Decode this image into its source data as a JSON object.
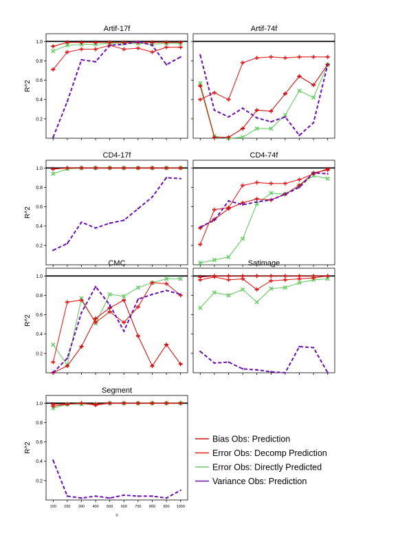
{
  "colors": {
    "bias": "#cc1111",
    "error_decomp": "#dd2222",
    "error_direct": "#66cc66",
    "variance": "#6a0dad",
    "reference": "#000000"
  },
  "legend": {
    "placement": "right-of-bottom-panel",
    "entries": [
      {
        "key": "bias",
        "label": "Bias Obs: Prediction"
      },
      {
        "key": "error_decomp",
        "label": "Error  Obs: Decomp Prediction"
      },
      {
        "key": "error_direct",
        "label": "Error  Obs: Directly Predicted"
      },
      {
        "key": "variance",
        "label": "Variance  Obs: Prediction"
      }
    ]
  },
  "chart_data": [
    {
      "type": "line",
      "title": "Artif-17f",
      "xlabel": "",
      "ylabel": "R^2",
      "show_ylabel": true,
      "show_xticks": false,
      "xlim": [
        50,
        1050
      ],
      "ylim": [
        0,
        1.08
      ],
      "x": [
        100,
        200,
        300,
        400,
        500,
        600,
        700,
        800,
        900,
        1000
      ],
      "yticks": [
        0.2,
        0.4,
        0.6,
        0.8,
        1.0
      ],
      "ytick_labels": [
        "0.2",
        "0.4",
        "0.6",
        "0.8",
        "1.0"
      ],
      "reference_line": 1.0,
      "series": [
        {
          "key": "bias",
          "values": [
            0.95,
            0.99,
            0.99,
            0.99,
            0.99,
            0.99,
            0.99,
            0.99,
            0.99,
            0.99
          ]
        },
        {
          "key": "error_decomp",
          "values": [
            0.71,
            0.89,
            0.92,
            0.92,
            0.96,
            0.92,
            0.93,
            0.89,
            0.94,
            0.94
          ]
        },
        {
          "key": "error_direct",
          "values": [
            0.9,
            0.96,
            0.97,
            0.97,
            0.98,
            0.98,
            0.98,
            0.97,
            0.98,
            0.98
          ]
        },
        {
          "key": "variance",
          "values": [
            0.01,
            0.38,
            0.81,
            0.79,
            0.96,
            0.97,
            1.0,
            0.96,
            0.76,
            0.84
          ]
        }
      ]
    },
    {
      "type": "line",
      "title": "Artif-74f",
      "xlabel": "",
      "ylabel": "",
      "show_ylabel": false,
      "show_xticks": false,
      "xlim": [
        50,
        1050
      ],
      "ylim": [
        0,
        1.08
      ],
      "x": [
        100,
        200,
        300,
        400,
        500,
        600,
        700,
        800,
        900,
        1000
      ],
      "yticks": [
        0.2,
        0.4,
        0.6,
        0.8,
        1.0
      ],
      "ytick_labels": [],
      "reference_line": 1.0,
      "series": [
        {
          "key": "bias",
          "values": [
            0.54,
            0.01,
            0.01,
            0.1,
            0.29,
            0.28,
            0.46,
            0.64,
            0.55,
            0.76
          ]
        },
        {
          "key": "error_decomp",
          "values": [
            0.4,
            0.47,
            0.4,
            0.78,
            0.83,
            0.84,
            0.83,
            0.84,
            0.84,
            0.84
          ]
        },
        {
          "key": "error_direct",
          "values": [
            0.57,
            0.02,
            0.0,
            0.01,
            0.1,
            0.1,
            0.24,
            0.49,
            0.42,
            0.76
          ]
        },
        {
          "key": "variance",
          "values": [
            0.86,
            0.29,
            0.22,
            0.31,
            0.21,
            0.17,
            0.22,
            0.03,
            0.16,
            0.76
          ]
        }
      ]
    },
    {
      "type": "line",
      "title": "CD4-17f",
      "xlabel": "",
      "ylabel": "R^2",
      "show_ylabel": true,
      "show_xticks": false,
      "xlim": [
        50,
        1050
      ],
      "ylim": [
        0,
        1.08
      ],
      "x": [
        100,
        200,
        300,
        400,
        500,
        600,
        700,
        800,
        900,
        1000
      ],
      "yticks": [
        0.2,
        0.4,
        0.6,
        0.8,
        1.0
      ],
      "ytick_labels": [
        "0.2",
        "0.4",
        "0.6",
        "0.8",
        "1.0"
      ],
      "reference_line": 1.0,
      "series": [
        {
          "key": "bias",
          "values": [
            0.99,
            1.0,
            1.0,
            1.0,
            1.0,
            1.0,
            1.0,
            1.0,
            1.0,
            1.0
          ]
        },
        {
          "key": "error_decomp",
          "values": [
            0.99,
            1.0,
            1.0,
            1.0,
            1.0,
            1.0,
            1.0,
            1.0,
            1.0,
            1.0
          ]
        },
        {
          "key": "error_direct",
          "values": [
            0.94,
            0.99,
            1.0,
            1.0,
            1.0,
            1.0,
            1.0,
            1.0,
            1.0,
            1.0
          ]
        },
        {
          "key": "variance",
          "values": [
            0.15,
            0.22,
            0.44,
            0.38,
            0.43,
            0.46,
            0.58,
            0.7,
            0.9,
            0.89
          ]
        }
      ]
    },
    {
      "type": "line",
      "title": "CD4-74f",
      "xlabel": "",
      "ylabel": "",
      "show_ylabel": false,
      "show_xticks": false,
      "xlim": [
        50,
        1050
      ],
      "ylim": [
        0,
        1.08
      ],
      "x": [
        100,
        200,
        300,
        400,
        500,
        600,
        700,
        800,
        900,
        1000
      ],
      "yticks": [
        0.2,
        0.4,
        0.6,
        0.8,
        1.0
      ],
      "ytick_labels": [],
      "reference_line": 1.0,
      "series": [
        {
          "key": "bias",
          "values": [
            0.38,
            0.47,
            0.58,
            0.64,
            0.68,
            0.67,
            0.73,
            0.82,
            0.95,
            0.98
          ]
        },
        {
          "key": "error_decomp",
          "values": [
            0.21,
            0.57,
            0.59,
            0.82,
            0.85,
            0.84,
            0.84,
            0.88,
            0.94,
            0.99
          ]
        },
        {
          "key": "error_direct",
          "values": [
            0.02,
            0.05,
            0.08,
            0.27,
            0.63,
            0.74,
            0.73,
            0.82,
            0.92,
            0.89
          ]
        },
        {
          "key": "variance",
          "values": [
            0.39,
            0.46,
            0.66,
            0.62,
            0.65,
            0.67,
            0.73,
            0.8,
            0.95,
            0.94
          ]
        }
      ]
    },
    {
      "type": "line",
      "title": "CMC",
      "xlabel": "",
      "ylabel": "R^2",
      "show_ylabel": true,
      "show_xticks": false,
      "xlim": [
        50,
        1050
      ],
      "ylim": [
        0,
        1.08
      ],
      "x": [
        100,
        200,
        300,
        400,
        500,
        600,
        700,
        800,
        900,
        1000
      ],
      "yticks": [
        0.2,
        0.4,
        0.6,
        0.8,
        1.0
      ],
      "ytick_labels": [
        "0.2",
        "0.4",
        "0.6",
        "0.8",
        "1.0"
      ],
      "reference_line": 1.0,
      "series": [
        {
          "key": "bias",
          "values": [
            0.0,
            0.07,
            0.27,
            0.56,
            0.67,
            0.75,
            0.38,
            0.07,
            0.29,
            0.09
          ]
        },
        {
          "key": "error_decomp",
          "values": [
            0.11,
            0.73,
            0.75,
            0.52,
            0.63,
            0.52,
            0.68,
            0.93,
            0.92,
            0.8
          ]
        },
        {
          "key": "error_direct",
          "values": [
            0.29,
            0.08,
            0.77,
            0.51,
            0.81,
            0.79,
            0.88,
            0.93,
            0.97,
            0.97
          ]
        },
        {
          "key": "variance",
          "values": [
            0.0,
            0.15,
            0.62,
            0.89,
            0.7,
            0.43,
            0.76,
            0.81,
            0.85,
            0.81
          ]
        }
      ]
    },
    {
      "type": "line",
      "title": "Satimage",
      "xlabel": "",
      "ylabel": "",
      "show_ylabel": false,
      "show_xticks": false,
      "xlim": [
        50,
        1050
      ],
      "ylim": [
        0,
        1.08
      ],
      "x": [
        100,
        200,
        300,
        400,
        500,
        600,
        700,
        800,
        900,
        1000
      ],
      "yticks": [
        0.2,
        0.4,
        0.6,
        0.8,
        1.0
      ],
      "ytick_labels": [],
      "reference_line": 1.0,
      "series": [
        {
          "key": "bias",
          "values": [
            0.99,
            1.0,
            1.0,
            1.0,
            1.0,
            1.0,
            1.0,
            1.0,
            1.0,
            1.0
          ]
        },
        {
          "key": "error_decomp",
          "values": [
            0.96,
            0.99,
            0.96,
            0.97,
            0.86,
            0.95,
            0.96,
            0.97,
            0.98,
            1.0
          ]
        },
        {
          "key": "error_direct",
          "values": [
            0.67,
            0.83,
            0.8,
            0.86,
            0.73,
            0.87,
            0.88,
            0.93,
            0.96,
            0.97
          ]
        },
        {
          "key": "variance",
          "values": [
            0.22,
            0.1,
            0.11,
            0.04,
            0.03,
            0.01,
            0.0,
            0.27,
            0.26,
            0.0
          ]
        }
      ]
    },
    {
      "type": "line",
      "title": "Segment",
      "xlabel": "n",
      "ylabel": "R^2",
      "show_ylabel": true,
      "show_xticks": true,
      "xlim": [
        50,
        1050
      ],
      "ylim": [
        0,
        1.08
      ],
      "x": [
        100,
        200,
        300,
        400,
        500,
        600,
        700,
        800,
        900,
        1000
      ],
      "xtick_labels": [
        "100",
        "200",
        "300",
        "400",
        "500",
        "600",
        "700",
        "800",
        "900",
        "1000"
      ],
      "yticks": [
        0.2,
        0.4,
        0.6,
        0.8,
        1.0
      ],
      "ytick_labels": [
        "0.2",
        "0.4",
        "0.6",
        "0.8",
        "1.0"
      ],
      "reference_line": 1.0,
      "series": [
        {
          "key": "bias",
          "values": [
            0.99,
            0.99,
            1.0,
            0.99,
            1.0,
            1.0,
            1.0,
            1.0,
            1.0,
            1.0
          ]
        },
        {
          "key": "error_decomp",
          "values": [
            0.97,
            0.99,
            1.0,
            0.98,
            1.0,
            1.0,
            1.0,
            1.0,
            1.0,
            1.0
          ]
        },
        {
          "key": "error_direct",
          "values": [
            0.95,
            0.99,
            0.99,
            0.99,
            1.0,
            1.0,
            1.0,
            1.0,
            1.0,
            1.0
          ]
        },
        {
          "key": "variance",
          "values": [
            0.41,
            0.04,
            0.02,
            0.04,
            0.02,
            0.05,
            0.04,
            0.04,
            0.02,
            0.1
          ]
        }
      ]
    }
  ]
}
